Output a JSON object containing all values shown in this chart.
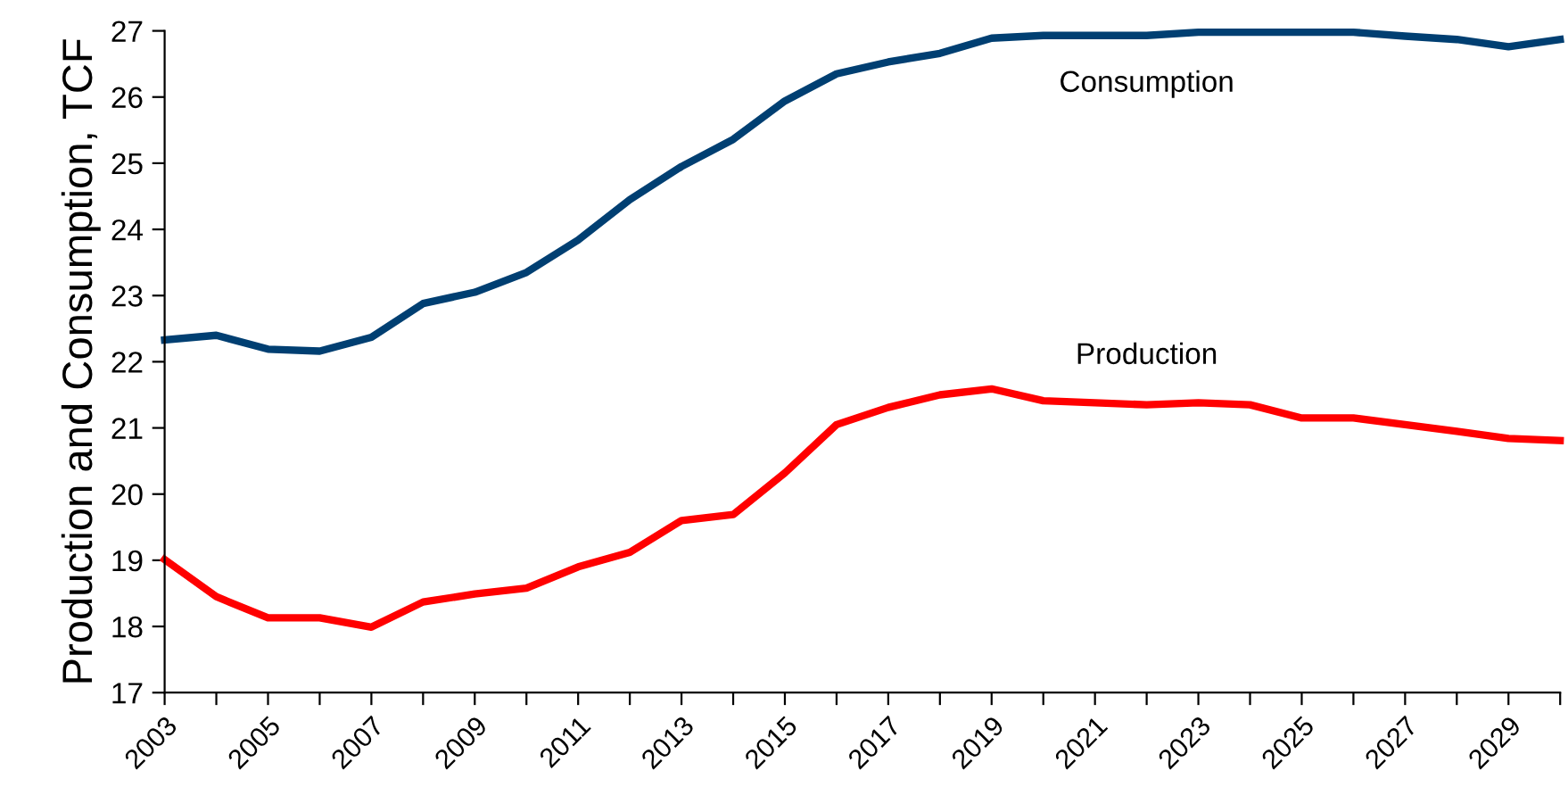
{
  "chart_data": {
    "type": "line",
    "ylabel": "Production and Consumption, TCF",
    "categories": [
      "2003",
      null,
      "2005",
      null,
      "2007",
      null,
      "2009",
      null,
      "2011",
      null,
      "2013",
      null,
      "2015",
      null,
      "2017",
      null,
      "2019",
      null,
      "2021",
      null,
      "2023",
      null,
      "2025",
      null,
      "2027",
      null,
      "2029",
      null
    ],
    "series": [
      {
        "name": "Consumption",
        "color": "#003f72",
        "values": [
          22.33,
          22.4,
          22.19,
          22.16,
          22.37,
          22.88,
          23.05,
          23.35,
          23.84,
          24.45,
          24.95,
          25.36,
          25.94,
          26.35,
          26.53,
          26.66,
          26.89,
          26.93,
          26.93,
          26.93,
          26.98,
          26.98,
          26.98,
          26.98,
          26.92,
          26.87,
          26.76,
          26.87
        ]
      },
      {
        "name": "Production",
        "color": "#ff0000",
        "values": [
          19.01,
          18.45,
          18.13,
          18.13,
          17.99,
          18.37,
          18.49,
          18.58,
          18.9,
          19.12,
          19.6,
          19.69,
          20.32,
          21.05,
          21.31,
          21.5,
          21.59,
          21.41,
          21.38,
          21.35,
          21.38,
          21.35,
          21.15,
          21.15,
          21.05,
          20.95,
          20.84,
          20.81
        ]
      }
    ],
    "ylim": [
      17,
      27
    ],
    "yticks": [
      17,
      18,
      19,
      20,
      21,
      22,
      23,
      24,
      25,
      26,
      27
    ],
    "grid": false,
    "legend": false,
    "marker": "none",
    "line_style": "solid"
  }
}
